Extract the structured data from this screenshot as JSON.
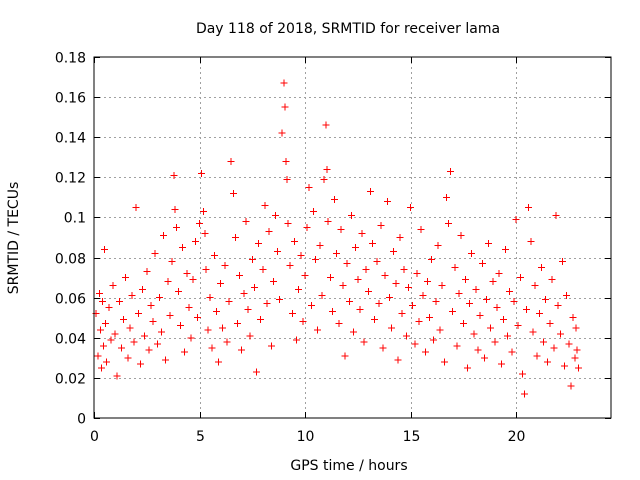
{
  "chart_data": {
    "type": "scatter",
    "title": "Day 118 of 2018, SRMTID for receiver lama",
    "xlabel": "GPS time / hours",
    "ylabel": "SRMTID / TECUs",
    "xlim": [
      0,
      24.5
    ],
    "ylim": [
      0,
      0.18
    ],
    "xticks": [
      0,
      5,
      10,
      15,
      20
    ],
    "xtick_labels": [
      "0",
      "5",
      "10",
      "15",
      "20"
    ],
    "yticks": [
      0,
      0.02,
      0.04,
      0.06,
      0.08,
      0.1,
      0.12,
      0.14,
      0.16,
      0.18
    ],
    "ytick_labels": [
      "0",
      "0.02",
      "0.04",
      "0.06",
      "0.08",
      "0.1",
      "0.12",
      "0.14",
      "0.16",
      "0.18"
    ],
    "grid": true,
    "marker": "+",
    "color": "#ff0000",
    "series": [
      {
        "name": "SRMTID",
        "points": [
          [
            0.1,
            0.052
          ],
          [
            0.2,
            0.031
          ],
          [
            0.25,
            0.062
          ],
          [
            0.3,
            0.044
          ],
          [
            0.35,
            0.025
          ],
          [
            0.4,
            0.058
          ],
          [
            0.45,
            0.036
          ],
          [
            0.5,
            0.084
          ],
          [
            0.55,
            0.047
          ],
          [
            0.6,
            0.028
          ],
          [
            0.7,
            0.055
          ],
          [
            0.8,
            0.039
          ],
          [
            0.9,
            0.066
          ],
          [
            1.0,
            0.042
          ],
          [
            1.1,
            0.021
          ],
          [
            1.2,
            0.058
          ],
          [
            1.3,
            0.035
          ],
          [
            1.4,
            0.049
          ],
          [
            1.5,
            0.07
          ],
          [
            1.6,
            0.03
          ],
          [
            1.7,
            0.045
          ],
          [
            1.8,
            0.061
          ],
          [
            1.9,
            0.038
          ],
          [
            2.0,
            0.105
          ],
          [
            2.1,
            0.052
          ],
          [
            2.2,
            0.027
          ],
          [
            2.3,
            0.064
          ],
          [
            2.4,
            0.041
          ],
          [
            2.5,
            0.073
          ],
          [
            2.6,
            0.034
          ],
          [
            2.7,
            0.056
          ],
          [
            2.8,
            0.048
          ],
          [
            2.9,
            0.082
          ],
          [
            3.0,
            0.037
          ],
          [
            3.1,
            0.06
          ],
          [
            3.2,
            0.043
          ],
          [
            3.3,
            0.091
          ],
          [
            3.4,
            0.029
          ],
          [
            3.5,
            0.068
          ],
          [
            3.6,
            0.051
          ],
          [
            3.7,
            0.078
          ],
          [
            3.8,
            0.121
          ],
          [
            3.85,
            0.104
          ],
          [
            3.9,
            0.095
          ],
          [
            4.0,
            0.063
          ],
          [
            4.1,
            0.046
          ],
          [
            4.2,
            0.085
          ],
          [
            4.3,
            0.033
          ],
          [
            4.4,
            0.072
          ],
          [
            4.5,
            0.055
          ],
          [
            4.6,
            0.04
          ],
          [
            4.7,
            0.069
          ],
          [
            4.8,
            0.088
          ],
          [
            4.9,
            0.05
          ],
          [
            5.0,
            0.097
          ],
          [
            5.1,
            0.122
          ],
          [
            5.2,
            0.103
          ],
          [
            5.25,
            0.092
          ],
          [
            5.3,
            0.074
          ],
          [
            5.4,
            0.044
          ],
          [
            5.5,
            0.06
          ],
          [
            5.6,
            0.035
          ],
          [
            5.7,
            0.081
          ],
          [
            5.8,
            0.053
          ],
          [
            5.9,
            0.028
          ],
          [
            6.0,
            0.067
          ],
          [
            6.1,
            0.045
          ],
          [
            6.2,
            0.076
          ],
          [
            6.3,
            0.038
          ],
          [
            6.4,
            0.058
          ],
          [
            6.5,
            0.128
          ],
          [
            6.6,
            0.112
          ],
          [
            6.7,
            0.09
          ],
          [
            6.8,
            0.047
          ],
          [
            6.9,
            0.071
          ],
          [
            7.0,
            0.034
          ],
          [
            7.1,
            0.062
          ],
          [
            7.2,
            0.098
          ],
          [
            7.3,
            0.054
          ],
          [
            7.4,
            0.041
          ],
          [
            7.5,
            0.079
          ],
          [
            7.6,
            0.065
          ],
          [
            7.7,
            0.023
          ],
          [
            7.8,
            0.087
          ],
          [
            7.9,
            0.049
          ],
          [
            8.0,
            0.074
          ],
          [
            8.1,
            0.106
          ],
          [
            8.2,
            0.057
          ],
          [
            8.3,
            0.093
          ],
          [
            8.4,
            0.036
          ],
          [
            8.5,
            0.068
          ],
          [
            8.6,
            0.101
          ],
          [
            8.7,
            0.083
          ],
          [
            8.8,
            0.059
          ],
          [
            8.9,
            0.142
          ],
          [
            9.0,
            0.167
          ],
          [
            9.05,
            0.155
          ],
          [
            9.1,
            0.128
          ],
          [
            9.15,
            0.119
          ],
          [
            9.2,
            0.097
          ],
          [
            9.3,
            0.076
          ],
          [
            9.4,
            0.052
          ],
          [
            9.5,
            0.088
          ],
          [
            9.6,
            0.039
          ],
          [
            9.7,
            0.064
          ],
          [
            9.8,
            0.081
          ],
          [
            9.9,
            0.048
          ],
          [
            10.0,
            0.071
          ],
          [
            10.1,
            0.095
          ],
          [
            10.2,
            0.115
          ],
          [
            10.3,
            0.056
          ],
          [
            10.4,
            0.103
          ],
          [
            10.5,
            0.079
          ],
          [
            10.6,
            0.044
          ],
          [
            10.7,
            0.086
          ],
          [
            10.8,
            0.061
          ],
          [
            10.9,
            0.119
          ],
          [
            11.0,
            0.146
          ],
          [
            11.05,
            0.124
          ],
          [
            11.1,
            0.098
          ],
          [
            11.2,
            0.07
          ],
          [
            11.3,
            0.053
          ],
          [
            11.4,
            0.109
          ],
          [
            11.5,
            0.082
          ],
          [
            11.6,
            0.047
          ],
          [
            11.7,
            0.094
          ],
          [
            11.8,
            0.066
          ],
          [
            11.9,
            0.031
          ],
          [
            12.0,
            0.077
          ],
          [
            12.1,
            0.058
          ],
          [
            12.2,
            0.101
          ],
          [
            12.3,
            0.043
          ],
          [
            12.4,
            0.085
          ],
          [
            12.5,
            0.069
          ],
          [
            12.6,
            0.054
          ],
          [
            12.7,
            0.092
          ],
          [
            12.8,
            0.038
          ],
          [
            12.9,
            0.074
          ],
          [
            13.0,
            0.063
          ],
          [
            13.1,
            0.113
          ],
          [
            13.2,
            0.087
          ],
          [
            13.3,
            0.049
          ],
          [
            13.4,
            0.078
          ],
          [
            13.5,
            0.057
          ],
          [
            13.6,
            0.096
          ],
          [
            13.7,
            0.035
          ],
          [
            13.8,
            0.071
          ],
          [
            13.9,
            0.108
          ],
          [
            14.0,
            0.06
          ],
          [
            14.1,
            0.045
          ],
          [
            14.2,
            0.083
          ],
          [
            14.3,
            0.067
          ],
          [
            14.4,
            0.029
          ],
          [
            14.5,
            0.09
          ],
          [
            14.6,
            0.052
          ],
          [
            14.7,
            0.074
          ],
          [
            14.8,
            0.041
          ],
          [
            14.9,
            0.065
          ],
          [
            15.0,
            0.105
          ],
          [
            15.1,
            0.056
          ],
          [
            15.2,
            0.037
          ],
          [
            15.3,
            0.072
          ],
          [
            15.4,
            0.048
          ],
          [
            15.5,
            0.094
          ],
          [
            15.6,
            0.061
          ],
          [
            15.7,
            0.033
          ],
          [
            15.8,
            0.068
          ],
          [
            15.9,
            0.05
          ],
          [
            16.0,
            0.079
          ],
          [
            16.1,
            0.039
          ],
          [
            16.2,
            0.058
          ],
          [
            16.3,
            0.086
          ],
          [
            16.4,
            0.044
          ],
          [
            16.5,
            0.066
          ],
          [
            16.6,
            0.028
          ],
          [
            16.7,
            0.11
          ],
          [
            16.8,
            0.097
          ],
          [
            16.9,
            0.123
          ],
          [
            17.0,
            0.053
          ],
          [
            17.1,
            0.075
          ],
          [
            17.2,
            0.036
          ],
          [
            17.3,
            0.062
          ],
          [
            17.4,
            0.091
          ],
          [
            17.5,
            0.047
          ],
          [
            17.6,
            0.069
          ],
          [
            17.7,
            0.025
          ],
          [
            17.8,
            0.057
          ],
          [
            17.9,
            0.082
          ],
          [
            18.0,
            0.042
          ],
          [
            18.1,
            0.064
          ],
          [
            18.2,
            0.034
          ],
          [
            18.3,
            0.051
          ],
          [
            18.4,
            0.077
          ],
          [
            18.5,
            0.03
          ],
          [
            18.6,
            0.059
          ],
          [
            18.7,
            0.087
          ],
          [
            18.8,
            0.045
          ],
          [
            18.9,
            0.068
          ],
          [
            19.0,
            0.038
          ],
          [
            19.1,
            0.055
          ],
          [
            19.2,
            0.072
          ],
          [
            19.3,
            0.027
          ],
          [
            19.4,
            0.049
          ],
          [
            19.5,
            0.084
          ],
          [
            19.6,
            0.041
          ],
          [
            19.7,
            0.063
          ],
          [
            19.8,
            0.033
          ],
          [
            19.9,
            0.058
          ],
          [
            20.0,
            0.099
          ],
          [
            20.1,
            0.046
          ],
          [
            20.2,
            0.07
          ],
          [
            20.3,
            0.022
          ],
          [
            20.4,
            0.012
          ],
          [
            20.5,
            0.054
          ],
          [
            20.6,
            0.105
          ],
          [
            20.7,
            0.088
          ],
          [
            20.8,
            0.043
          ],
          [
            20.9,
            0.066
          ],
          [
            21.0,
            0.031
          ],
          [
            21.1,
            0.052
          ],
          [
            21.2,
            0.075
          ],
          [
            21.3,
            0.038
          ],
          [
            21.4,
            0.059
          ],
          [
            21.5,
            0.028
          ],
          [
            21.6,
            0.047
          ],
          [
            21.7,
            0.069
          ],
          [
            21.8,
            0.035
          ],
          [
            21.9,
            0.101
          ],
          [
            22.0,
            0.056
          ],
          [
            22.1,
            0.042
          ],
          [
            22.2,
            0.078
          ],
          [
            22.3,
            0.026
          ],
          [
            22.4,
            0.061
          ],
          [
            22.5,
            0.037
          ],
          [
            22.6,
            0.016
          ],
          [
            22.7,
            0.05
          ],
          [
            22.8,
            0.03
          ],
          [
            22.85,
            0.045
          ],
          [
            22.9,
            0.034
          ],
          [
            22.95,
            0.025
          ]
        ]
      }
    ]
  }
}
